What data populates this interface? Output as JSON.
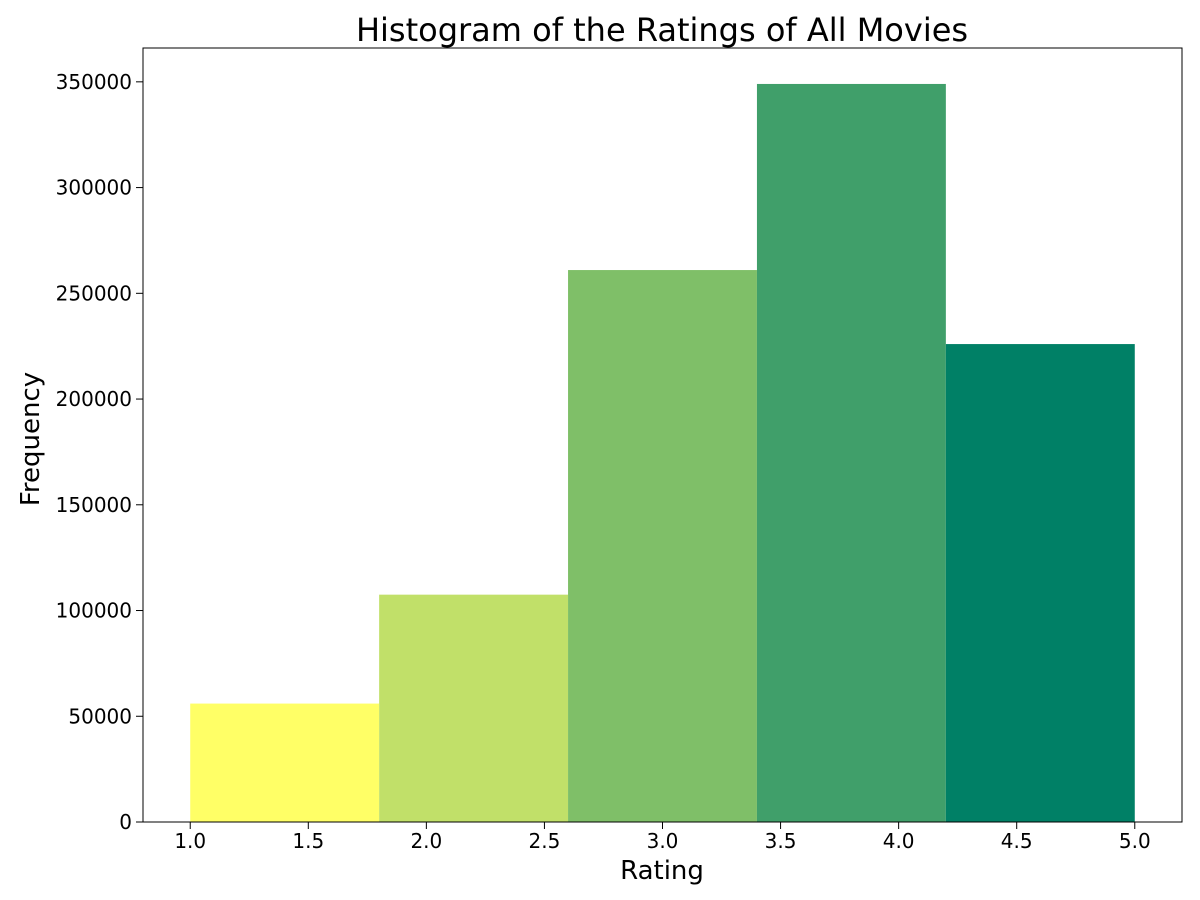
{
  "chart_data": {
    "type": "bar",
    "title": "Histogram of the Ratings of All Movies",
    "xlabel": "Rating",
    "ylabel": "Frequency",
    "bins": [
      {
        "start": 1.0,
        "end": 1.8,
        "value": 56000,
        "color": "#ffff66"
      },
      {
        "start": 1.8,
        "end": 2.6,
        "value": 107500,
        "color": "#c1e069"
      },
      {
        "start": 2.6,
        "end": 3.4,
        "value": 261000,
        "color": "#7fbf68"
      },
      {
        "start": 3.4,
        "end": 4.2,
        "value": 349000,
        "color": "#409f6a"
      },
      {
        "start": 4.2,
        "end": 5.0,
        "value": 226000,
        "color": "#008066"
      }
    ],
    "xlim": [
      0.8,
      5.2
    ],
    "ylim": [
      0,
      366000
    ],
    "xticks": [
      1.0,
      1.5,
      2.0,
      2.5,
      3.0,
      3.5,
      4.0,
      4.5,
      5.0
    ],
    "xtick_labels": [
      "1.0",
      "1.5",
      "2.0",
      "2.5",
      "3.0",
      "3.5",
      "4.0",
      "4.5",
      "5.0"
    ],
    "yticks": [
      0,
      50000,
      100000,
      150000,
      200000,
      250000,
      300000,
      350000
    ],
    "ytick_labels": [
      "0",
      "50000",
      "100000",
      "150000",
      "200000",
      "250000",
      "300000",
      "350000"
    ],
    "grid": false,
    "legend": false
  }
}
